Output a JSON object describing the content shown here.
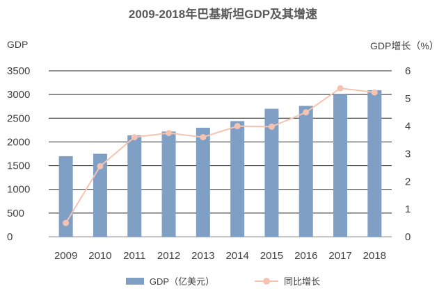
{
  "chart_data": {
    "type": "bar+line",
    "title": "2009-2018年巴基斯坦GDP及其增速",
    "categories": [
      "2009",
      "2010",
      "2011",
      "2012",
      "2013",
      "2014",
      "2015",
      "2016",
      "2017",
      "2018"
    ],
    "series": [
      {
        "name": "GDP（亿美元）",
        "type": "bar",
        "axis": "left",
        "color": "#7fa0c4",
        "values": [
          1700,
          1750,
          2140,
          2220,
          2300,
          2440,
          2700,
          2760,
          3000,
          3090
        ]
      },
      {
        "name": "同比增长",
        "type": "line",
        "axis": "right",
        "color": "#f6c3b2",
        "values": [
          0.5,
          2.55,
          3.6,
          3.75,
          3.6,
          4.0,
          3.98,
          4.5,
          5.37,
          5.22
        ]
      }
    ],
    "ylabel": "GDP",
    "y2label": "GDP增长（%）",
    "ylim": [
      0,
      3500
    ],
    "y2lim": [
      0,
      6
    ],
    "yticks": [
      "0",
      "500",
      "1000",
      "1500",
      "2000",
      "2500",
      "3000",
      "3500"
    ],
    "y2ticks": [
      "0",
      "1",
      "2",
      "3",
      "4",
      "5",
      "6"
    ],
    "grid": true,
    "legend": "bottom"
  }
}
